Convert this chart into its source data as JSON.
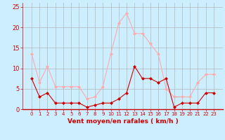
{
  "hours": [
    0,
    1,
    2,
    3,
    4,
    5,
    6,
    7,
    8,
    9,
    10,
    11,
    12,
    13,
    14,
    15,
    16,
    17,
    18,
    19,
    20,
    21,
    22,
    23
  ],
  "wind_avg": [
    7.5,
    3.0,
    4.0,
    1.5,
    1.5,
    1.5,
    1.5,
    0.5,
    1.0,
    1.5,
    1.5,
    2.5,
    4.0,
    10.5,
    7.5,
    7.5,
    6.5,
    7.5,
    0.5,
    1.5,
    1.5,
    1.5,
    4.0,
    4.0
  ],
  "wind_gust": [
    13.5,
    6.5,
    10.5,
    5.5,
    5.5,
    5.5,
    5.5,
    2.5,
    3.0,
    5.5,
    13.5,
    21.0,
    23.5,
    18.5,
    18.5,
    16.0,
    13.5,
    5.0,
    3.0,
    3.0,
    3.0,
    6.5,
    8.5,
    8.5
  ],
  "avg_color": "#cc0000",
  "gust_color": "#ffaaaa",
  "bg_color": "#cceeff",
  "grid_color": "#aaaaaa",
  "xlabel": "Vent moyen/en rafales ( km/h )",
  "xlabel_color": "#cc0000",
  "tick_color": "#cc0000",
  "ylim": [
    0,
    26
  ],
  "yticks": [
    0,
    5,
    10,
    15,
    20,
    25
  ],
  "marker": "D",
  "linewidth": 0.8,
  "markersize": 2.0
}
